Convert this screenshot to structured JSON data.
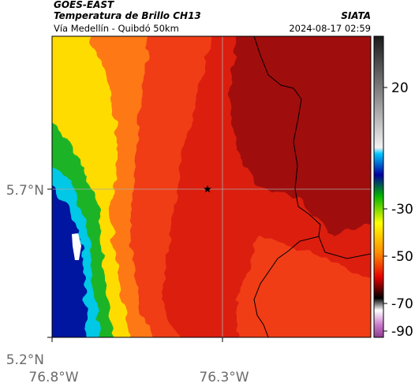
{
  "header": {
    "satellite": "GOES-EAST",
    "product": "Temperatura de Brillo CH13",
    "region": "Vía Medellín - Quibdó 50km",
    "brand": "SIATA",
    "timestamp": "2024-08-17 02:59"
  },
  "axes": {
    "y_ticks": [
      "5.7°N",
      "5.2°N"
    ],
    "x_ticks": [
      "76.8°W",
      "76.3°W"
    ]
  },
  "colorbar": {
    "labels": [
      "20",
      "-30",
      "-50",
      "-70",
      "-90"
    ],
    "colors": [
      "#1a1a1a",
      "#8c8c8c",
      "#f2f2f2",
      "#00c8ff",
      "#0000a0",
      "#00b400",
      "#ffff00",
      "#ff8c00",
      "#e60000",
      "#000000",
      "#c878c8"
    ]
  },
  "map": {
    "marker": "star-icon",
    "palette": {
      "dark_red": "#a00a0a",
      "red": "#dc1e0f",
      "orange_red": "#f03c14",
      "orange": "#ff7814",
      "yellow": "#ffdc00",
      "green": "#1eb428",
      "cyan": "#00c8e6",
      "blue": "#0014a0",
      "white": "#ffffff"
    }
  }
}
